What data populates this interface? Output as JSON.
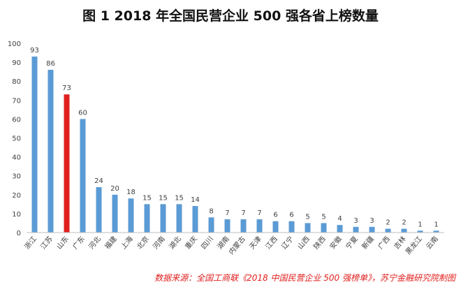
{
  "chart_data": {
    "type": "bar",
    "title": "图 1  2018 年全国民营企业 500 强各省上榜数量",
    "xlabel": "",
    "ylabel": "",
    "ylim": [
      0,
      100
    ],
    "yticks": [
      "0",
      "10",
      "20",
      "30",
      "40",
      "50",
      "60",
      "70",
      "80",
      "90",
      "100"
    ],
    "grid": false,
    "legend": "none",
    "categories": [
      "浙江",
      "江苏",
      "山东",
      "广东",
      "河北",
      "福建",
      "上海",
      "北京",
      "河南",
      "湖北",
      "重庆",
      "四川",
      "湖南",
      "内蒙古",
      "天津",
      "江西",
      "辽宁",
      "山西",
      "陕西",
      "安徽",
      "宁夏",
      "新疆",
      "广西",
      "吉林",
      "黑龙江",
      "云南"
    ],
    "values": [
      93,
      86,
      73,
      60,
      24,
      20,
      18,
      15,
      15,
      15,
      14,
      8,
      7,
      7,
      7,
      6,
      6,
      5,
      5,
      4,
      3,
      3,
      2,
      2,
      1,
      1
    ],
    "highlight_index": 2,
    "colors": {
      "bar": "#5b9bd5",
      "highlight": "#e0201f",
      "axis": "#bfbfbf",
      "label": "#404040",
      "source": "#e0201f"
    }
  },
  "source": "数据来源：全国工商联《2018 中国民营企业 500 强榜单》，苏宁金融研究院制图"
}
